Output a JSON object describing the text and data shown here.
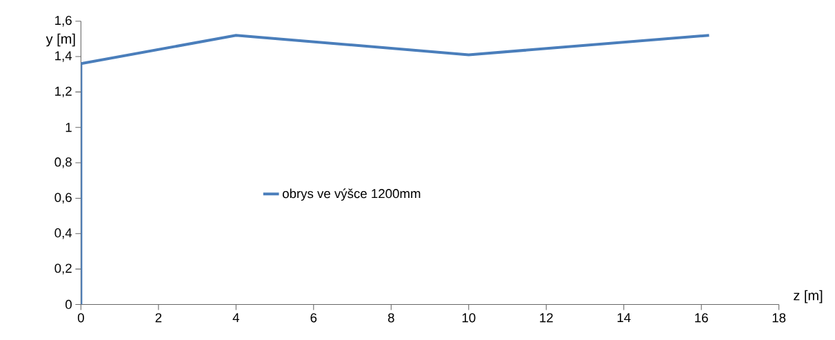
{
  "chart_data": {
    "type": "line",
    "xlabel": "z [m]",
    "ylabel": "y [m]",
    "series": [
      {
        "name": "obrys ve výšce 1200mm",
        "color": "#4a7ebb",
        "x": [
          0,
          0,
          4,
          10,
          16.2
        ],
        "values": [
          0,
          1.36,
          1.52,
          1.41,
          1.52
        ]
      }
    ],
    "xlim": [
      0,
      18
    ],
    "xticks": [
      0,
      2,
      4,
      6,
      8,
      10,
      12,
      14,
      16,
      18
    ],
    "ylim": [
      0,
      1.6
    ],
    "yticks": [
      0,
      {
        "value": 0.2,
        "label": "0,2"
      },
      {
        "value": 0.4,
        "label": "0,4"
      },
      {
        "value": 0.6,
        "label": "0,6"
      },
      {
        "value": 0.8,
        "label": "0,8"
      },
      1,
      {
        "value": 1.2,
        "label": "1,2"
      },
      {
        "value": 1.4,
        "label": "1,4"
      },
      {
        "value": 1.6,
        "label": "1,6"
      }
    ],
    "grid": false,
    "legend": "left",
    "marker": "none",
    "line_style": "solid"
  }
}
